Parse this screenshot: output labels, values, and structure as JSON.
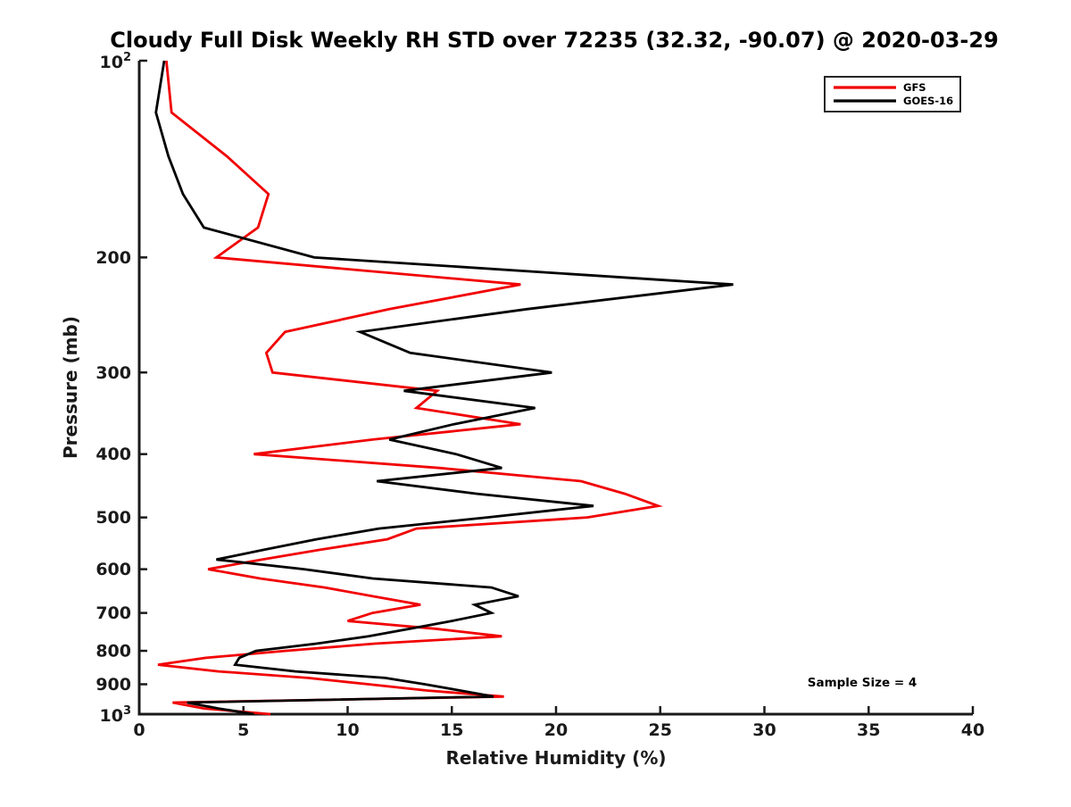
{
  "title": "Cloudy Full Disk Weekly RH STD over 72235 (32.32, -90.07) @ 2020-03-29",
  "annotation": "Sample Size = 4",
  "legend": {
    "items": [
      {
        "label": "GFS",
        "color": "#f10000"
      },
      {
        "label": "GOES-16",
        "color": "#000000"
      }
    ]
  },
  "axis_color": "#1a1a1a",
  "chart_data": {
    "type": "line",
    "title": "Cloudy Full Disk Weekly RH STD over 72235 (32.32, -90.07) @ 2020-03-29",
    "xlabel": "Relative Humidity (%)",
    "ylabel": "Pressure (mb)",
    "xlim": [
      0,
      40
    ],
    "x_ticks": [
      0,
      5,
      10,
      15,
      20,
      25,
      30,
      35,
      40
    ],
    "yscale": "log",
    "ylim": [
      100,
      1000
    ],
    "y_ticks": [
      100,
      200,
      300,
      400,
      500,
      600,
      700,
      800,
      900,
      1000
    ],
    "y_tick_labels": [
      "10^2",
      "200",
      "300",
      "400",
      "500",
      "600",
      "700",
      "800",
      "900",
      "10^3"
    ],
    "grid": false,
    "legend_position": "upper right",
    "annotation": "Sample Size = 4",
    "pressure_levels_mb": [
      100,
      120,
      140,
      160,
      180,
      200,
      220,
      240,
      260,
      280,
      300,
      320,
      340,
      360,
      380,
      400,
      420,
      440,
      460,
      480,
      500,
      520,
      540,
      560,
      580,
      600,
      620,
      640,
      660,
      680,
      700,
      720,
      740,
      760,
      780,
      800,
      820,
      840,
      860,
      880,
      900,
      920,
      940,
      960,
      980,
      1000
    ],
    "series": [
      {
        "name": "GFS",
        "color": "#f10000",
        "rh_std_percent": [
          1.3,
          1.55,
          4.2,
          6.2,
          5.7,
          3.7,
          18.3,
          12.0,
          7.0,
          6.1,
          6.4,
          14.3,
          13.3,
          18.3,
          11.2,
          5.5,
          14.4,
          21.2,
          23.3,
          24.9,
          21.5,
          13.3,
          11.9,
          8.7,
          5.9,
          3.3,
          5.8,
          8.9,
          11.2,
          13.5,
          11.2,
          10.0,
          14.2,
          17.4,
          11.3,
          7.0,
          3.2,
          0.9,
          3.8,
          8.1,
          11.0,
          13.8,
          17.5,
          1.6,
          3.1,
          6.3
        ]
      },
      {
        "name": "GOES-16",
        "color": "#000000",
        "rh_std_percent": [
          1.2,
          0.8,
          1.4,
          2.1,
          3.1,
          8.4,
          28.5,
          18.6,
          10.6,
          13.0,
          19.8,
          12.7,
          19.0,
          15.1,
          12.0,
          15.2,
          17.4,
          11.4,
          16.2,
          21.8,
          16.7,
          11.5,
          8.5,
          6.0,
          3.7,
          7.9,
          11.2,
          16.9,
          18.2,
          16.1,
          16.9,
          15.0,
          13.0,
          11.0,
          8.5,
          5.6,
          4.8,
          4.6,
          7.5,
          11.8,
          13.7,
          15.4,
          17.0,
          2.3,
          3.8,
          5.5
        ]
      }
    ]
  }
}
